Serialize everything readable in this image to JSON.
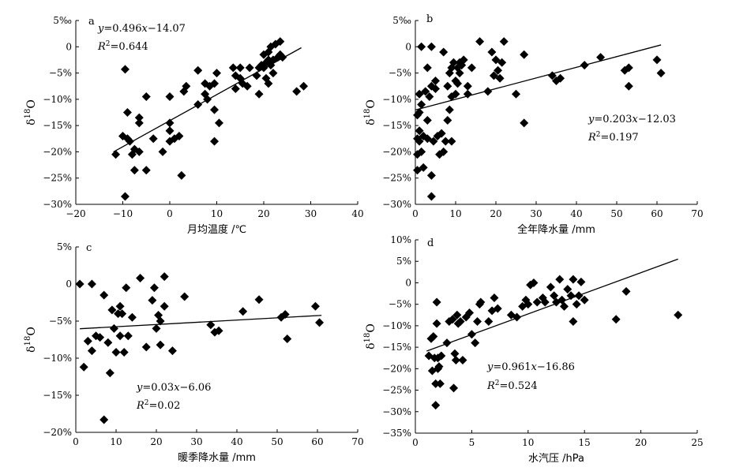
{
  "chart_data": [
    {
      "type": "scatter",
      "panel": "a",
      "xlabel": "月均温度 /℃",
      "ylabel": "δ18O",
      "xlim": [
        -20,
        40
      ],
      "ylim": [
        -30,
        5
      ],
      "xticks": [
        "−20",
        "−10",
        "0",
        "10",
        "20",
        "30",
        "40"
      ],
      "yticks": [
        "5‰",
        "0",
        "−5%",
        "−10%",
        "−15%",
        "−20%",
        "−25%",
        "−30%"
      ],
      "equation": "y=0.496x−14.07",
      "r2": "R2=0.644",
      "fit": {
        "slope": 0.496,
        "intercept": -14.07,
        "x_range": [
          -12,
          28
        ]
      },
      "points": [
        [
          -11.5,
          -20.5
        ],
        [
          -10,
          -17
        ],
        [
          -9.5,
          -4.3
        ],
        [
          -9.5,
          -28.5
        ],
        [
          -9,
          -17.5
        ],
        [
          -9,
          -12.5
        ],
        [
          -8.5,
          -18
        ],
        [
          -8,
          -20.5
        ],
        [
          -7.5,
          -19.5
        ],
        [
          -7.5,
          -23.5
        ],
        [
          -6.5,
          -13.5
        ],
        [
          -6.5,
          -14.5
        ],
        [
          -6.5,
          -20
        ],
        [
          -5,
          -23.5
        ],
        [
          -5,
          -9.5
        ],
        [
          -3.5,
          -17.5
        ],
        [
          -1.5,
          -20
        ],
        [
          0,
          -18
        ],
        [
          0,
          -16
        ],
        [
          0,
          -14.5
        ],
        [
          0,
          -9.5
        ],
        [
          1,
          -17.5
        ],
        [
          2,
          -17
        ],
        [
          2.5,
          -24.5
        ],
        [
          3,
          -8.5
        ],
        [
          3.5,
          -7.5
        ],
        [
          6,
          -11
        ],
        [
          6,
          -4.5
        ],
        [
          7.5,
          -9
        ],
        [
          7.5,
          -7
        ],
        [
          8,
          -10
        ],
        [
          8.5,
          -7.5
        ],
        [
          9.5,
          -18
        ],
        [
          9.5,
          -12
        ],
        [
          9.5,
          -7
        ],
        [
          10,
          -5
        ],
        [
          10.5,
          -14.5
        ],
        [
          13.5,
          -4
        ],
        [
          14,
          -5.5
        ],
        [
          14,
          -8
        ],
        [
          15,
          -4
        ],
        [
          15,
          -6
        ],
        [
          15.5,
          -7
        ],
        [
          16.5,
          -7.5
        ],
        [
          17,
          -4
        ],
        [
          18.5,
          -5.5
        ],
        [
          19,
          -4
        ],
        [
          19,
          -9
        ],
        [
          19.5,
          -3.5
        ],
        [
          20,
          -1.5
        ],
        [
          20,
          -4
        ],
        [
          20.5,
          -3
        ],
        [
          20.5,
          -6
        ],
        [
          21,
          -2.5
        ],
        [
          21,
          -1
        ],
        [
          21,
          -7
        ],
        [
          21.5,
          -3.5
        ],
        [
          21.5,
          0
        ],
        [
          22,
          -2.5
        ],
        [
          22,
          -5
        ],
        [
          22.5,
          0.5
        ],
        [
          23,
          -2
        ],
        [
          23.5,
          -1.5
        ],
        [
          23.5,
          1
        ],
        [
          24,
          -2
        ],
        [
          27,
          -8.5
        ],
        [
          28.5,
          -7.5
        ]
      ]
    },
    {
      "type": "scatter",
      "panel": "b",
      "xlabel": "全年降水量 /mm",
      "ylabel": "δ18O",
      "xlim": [
        0,
        70
      ],
      "ylim": [
        -30,
        5
      ],
      "xticks": [
        "0",
        "10",
        "20",
        "30",
        "40",
        "50",
        "60",
        "70"
      ],
      "yticks": [
        "5‰",
        "0",
        "−5%",
        "−10%",
        "−15%",
        "−20%",
        "−25%",
        "−30%"
      ],
      "equation": "y=0.203x−12.03",
      "r2": "R2=0.197",
      "fit": {
        "slope": 0.203,
        "intercept": -12.03,
        "x_range": [
          0,
          61
        ]
      },
      "points": [
        [
          0.5,
          -13
        ],
        [
          0.5,
          -17.5
        ],
        [
          0.5,
          -20.5
        ],
        [
          0.5,
          -23.5
        ],
        [
          1,
          -9
        ],
        [
          1,
          -12.5
        ],
        [
          1,
          -16
        ],
        [
          1,
          -18
        ],
        [
          1.5,
          0
        ],
        [
          1.5,
          -11
        ],
        [
          1.5,
          -20
        ],
        [
          2,
          -17
        ],
        [
          2,
          -23
        ],
        [
          2.5,
          -8.5
        ],
        [
          3,
          -14
        ],
        [
          3,
          -17.5
        ],
        [
          3,
          -4
        ],
        [
          3.5,
          -9.5
        ],
        [
          4,
          -7.5
        ],
        [
          4,
          0
        ],
        [
          4,
          -24.5
        ],
        [
          4,
          -28.5
        ],
        [
          4.5,
          -18
        ],
        [
          5,
          -6.5
        ],
        [
          5,
          -8
        ],
        [
          5.5,
          -17
        ],
        [
          6,
          -20.5
        ],
        [
          6.5,
          -16.5
        ],
        [
          7,
          -20
        ],
        [
          7,
          -1
        ],
        [
          7.5,
          -18
        ],
        [
          8,
          -14
        ],
        [
          8,
          -7.5
        ],
        [
          8.5,
          -12
        ],
        [
          8.5,
          -5
        ],
        [
          9,
          -4
        ],
        [
          9,
          -9.5
        ],
        [
          9,
          -18
        ],
        [
          9.5,
          -3
        ],
        [
          10,
          -6.5
        ],
        [
          10,
          -9
        ],
        [
          10.5,
          -7
        ],
        [
          10.5,
          -4
        ],
        [
          11,
          -5
        ],
        [
          11,
          -3
        ],
        [
          11.5,
          -3.5
        ],
        [
          12,
          -2.5
        ],
        [
          13,
          -7.5
        ],
        [
          13,
          -9
        ],
        [
          14,
          -4
        ],
        [
          16,
          1
        ],
        [
          18,
          -8.5
        ],
        [
          19,
          -1
        ],
        [
          19.5,
          -5.5
        ],
        [
          20,
          -2.5
        ],
        [
          20.5,
          -4.5
        ],
        [
          21,
          -6
        ],
        [
          21.5,
          -3
        ],
        [
          22,
          1
        ],
        [
          25,
          -9
        ],
        [
          27,
          -14.5
        ],
        [
          27,
          -1.5
        ],
        [
          34,
          -5.5
        ],
        [
          35,
          -6.5
        ],
        [
          36,
          -6
        ],
        [
          42,
          -3.5
        ],
        [
          46,
          -2
        ],
        [
          52,
          -4.5
        ],
        [
          53,
          -4
        ],
        [
          53,
          -7.5
        ],
        [
          60,
          -2.5
        ],
        [
          61,
          -5
        ]
      ]
    },
    {
      "type": "scatter",
      "panel": "c",
      "xlabel": "暖季降水量 /mm",
      "ylabel": "δ18O",
      "xlim": [
        0,
        70
      ],
      "ylim": [
        -20,
        5
      ],
      "xticks": [
        "0",
        "10",
        "20",
        "30",
        "40",
        "50",
        "60",
        "70"
      ],
      "yticks": [
        "5%",
        "0",
        "−5%",
        "−10%",
        "−15%",
        "−20%"
      ],
      "equation": "y=0.03x−6.06",
      "r2": "R2=0.02",
      "fit": {
        "slope": 0.03,
        "intercept": -6.06,
        "x_range": [
          1,
          61
        ]
      },
      "points": [
        [
          1,
          0
        ],
        [
          2,
          -11.2
        ],
        [
          3,
          -7.7
        ],
        [
          4,
          0
        ],
        [
          4,
          -9
        ],
        [
          5,
          -7
        ],
        [
          6,
          -7.2
        ],
        [
          7,
          -18.3
        ],
        [
          7,
          -1.5
        ],
        [
          8,
          -7.9
        ],
        [
          8.5,
          -12
        ],
        [
          9,
          -3.5
        ],
        [
          9.5,
          -6
        ],
        [
          10,
          -9.2
        ],
        [
          10.5,
          -4
        ],
        [
          11,
          -3
        ],
        [
          11,
          -7
        ],
        [
          11.5,
          -4
        ],
        [
          12,
          -9.2
        ],
        [
          12.5,
          -0.5
        ],
        [
          13,
          -7
        ],
        [
          14,
          -4.5
        ],
        [
          16,
          0.8
        ],
        [
          17.5,
          -8.5
        ],
        [
          19,
          -2.2
        ],
        [
          19.5,
          -0.5
        ],
        [
          20,
          -6
        ],
        [
          20.5,
          -4.2
        ],
        [
          21,
          -5
        ],
        [
          21,
          -8.2
        ],
        [
          22,
          1
        ],
        [
          22,
          -3
        ],
        [
          24,
          -9
        ],
        [
          27,
          -1.7
        ],
        [
          33.5,
          -5.5
        ],
        [
          34.5,
          -6.5
        ],
        [
          35.5,
          -6.3
        ],
        [
          41.5,
          -3.7
        ],
        [
          45.5,
          -2.1
        ],
        [
          51,
          -4.5
        ],
        [
          52,
          -4.1
        ],
        [
          52.5,
          -7.4
        ],
        [
          59.5,
          -3
        ],
        [
          60.5,
          -5.2
        ]
      ]
    },
    {
      "type": "scatter",
      "panel": "d",
      "xlabel": "水汽压 /hPa",
      "ylabel": "δ18O",
      "xlim": [
        0,
        25
      ],
      "ylim": [
        -35,
        10
      ],
      "xticks": [
        "0",
        "5",
        "10",
        "15",
        "20",
        "25"
      ],
      "yticks": [
        "10%",
        "5%",
        "0",
        "−5%",
        "−10%",
        "−15%",
        "−20%",
        "−25%",
        "−30%",
        "−35%"
      ],
      "equation": "y=0.961x−16.86",
      "r2": "R2=0.524",
      "fit": {
        "slope": 0.961,
        "intercept": -16.86,
        "x_range": [
          1,
          23.3
        ]
      },
      "points": [
        [
          1.2,
          -17
        ],
        [
          1.4,
          -13
        ],
        [
          1.5,
          -20.5
        ],
        [
          1.6,
          -12.5
        ],
        [
          1.7,
          -17.5
        ],
        [
          1.8,
          -28.5
        ],
        [
          1.8,
          -23.5
        ],
        [
          1.9,
          -9.5
        ],
        [
          1.9,
          -4.5
        ],
        [
          2.0,
          -20
        ],
        [
          2.0,
          -17.5
        ],
        [
          2.1,
          -19.5
        ],
        [
          2.2,
          -23.5
        ],
        [
          2.3,
          -17
        ],
        [
          2.8,
          -14
        ],
        [
          3.0,
          -9
        ],
        [
          3.3,
          -8.5
        ],
        [
          3.4,
          -24.5
        ],
        [
          3.5,
          -16.5
        ],
        [
          3.6,
          -18
        ],
        [
          3.7,
          -7.5
        ],
        [
          3.8,
          -9.5
        ],
        [
          4.0,
          -9
        ],
        [
          4.2,
          -18
        ],
        [
          4.5,
          -8
        ],
        [
          4.8,
          -7
        ],
        [
          5.0,
          -12
        ],
        [
          5.3,
          -14
        ],
        [
          5.5,
          -9
        ],
        [
          5.7,
          -5
        ],
        [
          5.8,
          -4.5
        ],
        [
          6.5,
          -9
        ],
        [
          6.8,
          -6.5
        ],
        [
          7.0,
          -3.5
        ],
        [
          7.3,
          -6
        ],
        [
          8.5,
          -7.5
        ],
        [
          9.0,
          -8
        ],
        [
          9.5,
          -5.5
        ],
        [
          9.8,
          -4
        ],
        [
          10.0,
          -5
        ],
        [
          10.2,
          -0.5
        ],
        [
          10.5,
          0
        ],
        [
          10.8,
          -4.5
        ],
        [
          11.3,
          -3.5
        ],
        [
          11.5,
          -4.5
        ],
        [
          12.0,
          -1
        ],
        [
          12.3,
          -3
        ],
        [
          12.5,
          -4.5
        ],
        [
          12.8,
          0.8
        ],
        [
          13.0,
          -4
        ],
        [
          13.2,
          -5.5
        ],
        [
          13.5,
          -1.5
        ],
        [
          13.8,
          -3
        ],
        [
          14.0,
          -9
        ],
        [
          14.0,
          0.8
        ],
        [
          14.3,
          -5
        ],
        [
          14.5,
          -3
        ],
        [
          14.7,
          0.2
        ],
        [
          15.0,
          -4
        ],
        [
          17.8,
          -8.5
        ],
        [
          18.7,
          -2
        ],
        [
          23.3,
          -7.5
        ]
      ]
    }
  ]
}
